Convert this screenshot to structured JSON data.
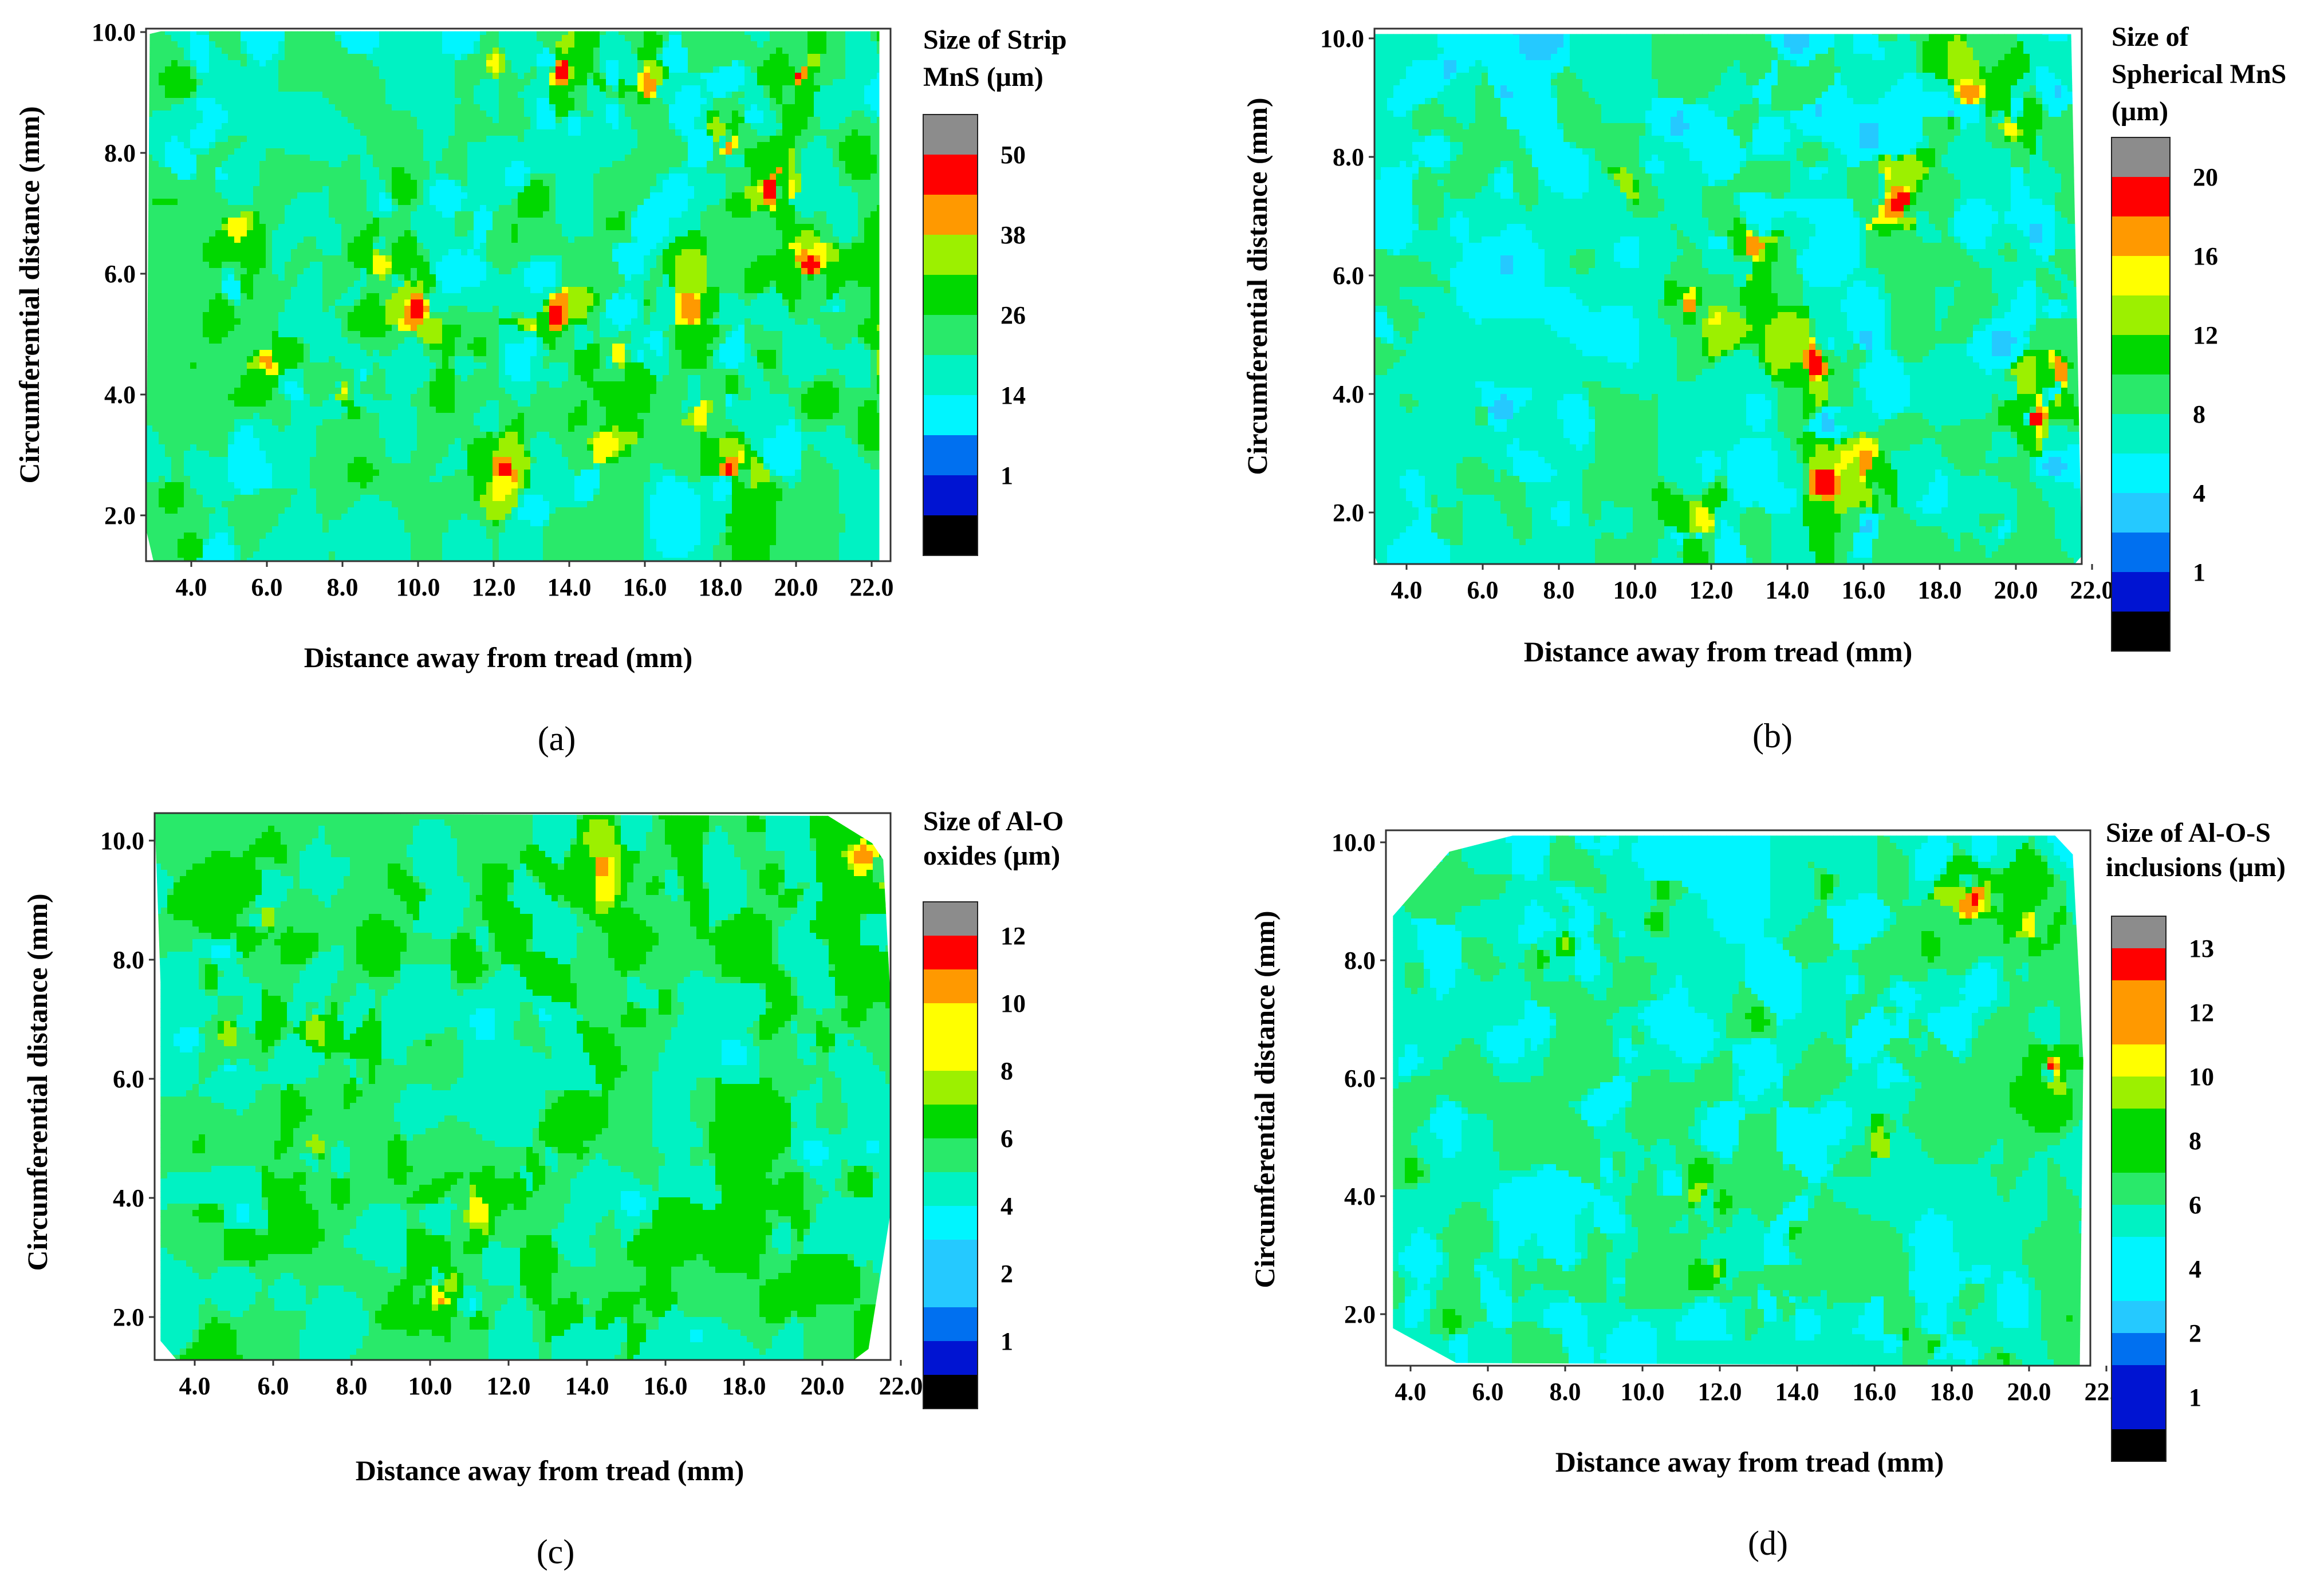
{
  "figure": {
    "colors": {
      "scale": [
        "#000000",
        "#0014d2",
        "#0070f0",
        "#25c9ff",
        "#00f5ff",
        "#00f2c3",
        "#29e96a",
        "#00d800",
        "#9cf000",
        "#ffff00",
        "#ff9900",
        "#ff0000",
        "#8c8c8c"
      ],
      "plot_border": "#333333",
      "text": "#000000"
    }
  },
  "chart_data": [
    {
      "type": "heatmap",
      "caption": "(a)",
      "xlabel": "Distance away from tread (mm)",
      "ylabel": "Circumferential distance (mm)",
      "xlim": [
        3.0,
        22.9
      ],
      "ylim": [
        1.3,
        10.1
      ],
      "xticks": [
        "4.0",
        "6.0",
        "8.0",
        "10.0",
        "12.0",
        "14.0",
        "16.0",
        "18.0",
        "20.0",
        "22.0"
      ],
      "yticks": [
        "2.0",
        "4.0",
        "6.0",
        "8.0",
        "10.0"
      ],
      "legend_title": [
        "Size of Strip",
        "MnS (μm)"
      ],
      "legend_levels": [
        "1",
        "14",
        "26",
        "38",
        "50"
      ],
      "value_range": [
        1,
        55
      ],
      "field_seed": 11,
      "field_bias": 0.05,
      "field_peaks": [
        {
          "x": 5.2,
          "y": 6.8,
          "v": 40
        },
        {
          "x": 6.0,
          "y": 4.6,
          "v": 44
        },
        {
          "x": 9.0,
          "y": 6.2,
          "v": 40
        },
        {
          "x": 10.0,
          "y": 5.4,
          "v": 48
        },
        {
          "x": 12.3,
          "y": 2.8,
          "v": 48
        },
        {
          "x": 13.6,
          "y": 5.3,
          "v": 50
        },
        {
          "x": 13.8,
          "y": 9.4,
          "v": 48
        },
        {
          "x": 14.8,
          "y": 3.1,
          "v": 40
        },
        {
          "x": 15.3,
          "y": 4.7,
          "v": 40
        },
        {
          "x": 16.1,
          "y": 9.1,
          "v": 44
        },
        {
          "x": 17.2,
          "y": 5.4,
          "v": 44
        },
        {
          "x": 18.2,
          "y": 2.8,
          "v": 48
        },
        {
          "x": 18.2,
          "y": 8.1,
          "v": 44
        },
        {
          "x": 19.3,
          "y": 7.4,
          "v": 52
        },
        {
          "x": 20.1,
          "y": 9.3,
          "v": 48
        },
        {
          "x": 20.4,
          "y": 6.1,
          "v": 48
        },
        {
          "x": 22.4,
          "y": 4.9,
          "v": 52
        },
        {
          "x": 17.5,
          "y": 3.7,
          "v": 40
        },
        {
          "x": 12.0,
          "y": 9.5,
          "v": 36
        },
        {
          "x": 8.0,
          "y": 4.1,
          "v": 38
        }
      ]
    },
    {
      "type": "heatmap",
      "caption": "(b)",
      "xlabel": "Distance away from tread (mm)",
      "ylabel": "Circumferential distance (mm)",
      "xlim": [
        3.2,
        22.8
      ],
      "ylim": [
        1.2,
        10.2
      ],
      "xticks": [
        "4.0",
        "6.0",
        "8.0",
        "10.0",
        "12.0",
        "14.0",
        "16.0",
        "18.0",
        "20.0",
        "22.0"
      ],
      "yticks": [
        "2.0",
        "4.0",
        "6.0",
        "8.0",
        "10.0"
      ],
      "legend_title": [
        "Size of",
        "Spherical  MnS",
        "(μm)"
      ],
      "legend_levels": [
        "1",
        "4",
        "8",
        "12",
        "16",
        "20"
      ],
      "value_range": [
        1,
        22
      ],
      "field_seed": 23,
      "field_bias": -0.1,
      "field_peaks": [
        {
          "x": 11.4,
          "y": 5.4,
          "v": 20
        },
        {
          "x": 14.7,
          "y": 4.5,
          "v": 20
        },
        {
          "x": 17.0,
          "y": 7.2,
          "v": 20
        },
        {
          "x": 18.8,
          "y": 9.0,
          "v": 18
        },
        {
          "x": 20.5,
          "y": 3.6,
          "v": 20
        },
        {
          "x": 15.0,
          "y": 2.5,
          "v": 20
        },
        {
          "x": 21.2,
          "y": 4.4,
          "v": 18
        },
        {
          "x": 19.8,
          "y": 8.5,
          "v": 16
        },
        {
          "x": 13.2,
          "y": 6.5,
          "v": 18
        },
        {
          "x": 16.0,
          "y": 2.8,
          "v": 18
        },
        {
          "x": 11.8,
          "y": 1.8,
          "v": 16
        },
        {
          "x": 9.8,
          "y": 7.6,
          "v": 14
        }
      ]
    },
    {
      "type": "heatmap",
      "caption": "(c)",
      "xlabel": "Distance away from tread (mm)",
      "ylabel": "Circumferential distance (mm)",
      "xlim": [
        3.0,
        22.4
      ],
      "ylim": [
        1.3,
        10.3
      ],
      "xticks": [
        "4.0",
        "6.0",
        "8.0",
        "10.0",
        "12.0",
        "14.0",
        "16.0",
        "18.0",
        "20.0",
        "22.0"
      ],
      "yticks": [
        "2.0",
        "4.0",
        "6.0",
        "8.0",
        "10.0"
      ],
      "legend_title": [
        "Size of Al-O",
        "oxides (μm)"
      ],
      "legend_levels": [
        "1",
        "2",
        "4",
        "6",
        "8",
        "10",
        "12"
      ],
      "value_range": [
        0.5,
        13
      ],
      "field_seed": 37,
      "field_bias": 0.35,
      "field_peaks": [
        {
          "x": 14.4,
          "y": 9.6,
          "v": 10
        },
        {
          "x": 21.1,
          "y": 9.7,
          "v": 10
        },
        {
          "x": 10.3,
          "y": 2.3,
          "v": 10
        },
        {
          "x": 11.2,
          "y": 3.8,
          "v": 9
        },
        {
          "x": 7.1,
          "y": 4.9,
          "v": 8
        },
        {
          "x": 5.9,
          "y": 8.7,
          "v": 8
        },
        {
          "x": 7.1,
          "y": 6.9,
          "v": 8
        },
        {
          "x": 4.8,
          "y": 6.7,
          "v": 8
        },
        {
          "x": 12.6,
          "y": 4.4,
          "v": 7
        },
        {
          "x": 16.0,
          "y": 7.2,
          "v": 7
        },
        {
          "x": 20.0,
          "y": 6.7,
          "v": 7
        },
        {
          "x": 14.5,
          "y": 2.0,
          "v": 7
        }
      ]
    },
    {
      "type": "heatmap",
      "caption": "(d)",
      "xlabel": "Distance away from tread (mm)",
      "ylabel": "Circumferential distance (mm)",
      "xlim": [
        3.4,
        22.6
      ],
      "ylim": [
        1.1,
        10.3
      ],
      "xticks": [
        "4.0",
        "6.0",
        "8.0",
        "10.0",
        "12.0",
        "14.0",
        "16.0",
        "18.0",
        "20.0",
        "22.0"
      ],
      "yticks": [
        "2.0",
        "4.0",
        "6.0",
        "8.0",
        "10.0"
      ],
      "legend_title": [
        "Size of Al-O-S",
        "inclusions (μm)"
      ],
      "legend_levels": [
        "1",
        "2",
        "4",
        "6",
        "8",
        "10",
        "12",
        "13"
      ],
      "value_range": [
        0.8,
        14
      ],
      "field_seed": 53,
      "field_bias": 0.0,
      "field_peaks": [
        {
          "x": 18.6,
          "y": 9.0,
          "v": 12
        },
        {
          "x": 20.6,
          "y": 6.2,
          "v": 12
        },
        {
          "x": 20.1,
          "y": 8.6,
          "v": 10
        },
        {
          "x": 16.2,
          "y": 4.8,
          "v": 9
        },
        {
          "x": 11.4,
          "y": 4.1,
          "v": 9
        },
        {
          "x": 8.0,
          "y": 8.3,
          "v": 8
        },
        {
          "x": 11.9,
          "y": 2.7,
          "v": 8
        },
        {
          "x": 14.8,
          "y": 9.2,
          "v": 7
        },
        {
          "x": 10.3,
          "y": 8.6,
          "v": 7
        },
        {
          "x": 17.5,
          "y": 1.5,
          "v": 7
        }
      ]
    }
  ]
}
